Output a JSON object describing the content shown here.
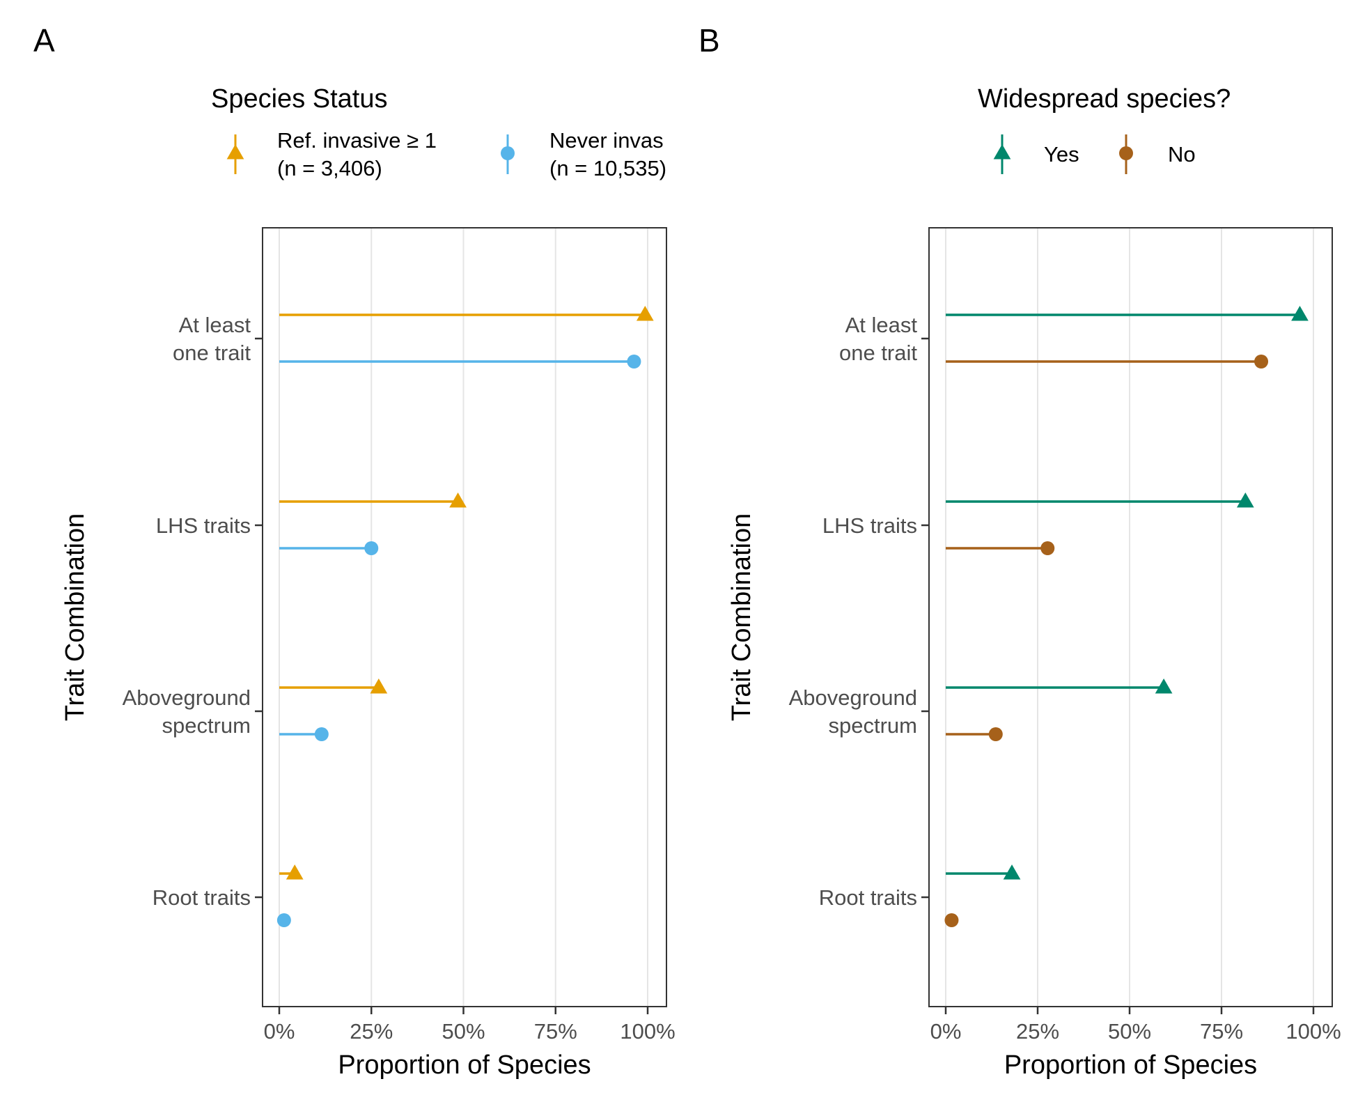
{
  "chart_data": [
    {
      "type": "lollipop",
      "panel_label": "A",
      "legend_title": "Species Status",
      "legend_placement": "top",
      "xlabel": "Proportion of Species",
      "ylabel": "Trait Combination",
      "xlim": [
        0,
        100
      ],
      "x_ticks": [
        "0%",
        "25%",
        "50%",
        "75%",
        "100%"
      ],
      "grid": true,
      "categories": [
        [
          "At least",
          "one trait"
        ],
        [
          "LHS traits"
        ],
        [
          "Aboveground",
          "spectrum"
        ],
        [
          "Root traits"
        ]
      ],
      "series": [
        {
          "name_lines": [
            "Ref. invasive ≥ 1",
            "(n =  3,406)"
          ],
          "shape": "triangle",
          "color": "#E69F00",
          "values": [
            99.3,
            48.5,
            27,
            4.2
          ]
        },
        {
          "name_lines": [
            "Never invas",
            "(n = 10,535)"
          ],
          "shape": "circle",
          "color": "#56B4E9",
          "values": [
            96.3,
            25,
            11.5,
            1.3
          ]
        }
      ]
    },
    {
      "type": "lollipop",
      "panel_label": "B",
      "legend_title": "Widespread species?",
      "legend_placement": "top",
      "xlabel": "Proportion of Species",
      "ylabel": "Trait Combination",
      "xlim": [
        0,
        100
      ],
      "x_ticks": [
        "0%",
        "25%",
        "50%",
        "75%",
        "100%"
      ],
      "grid": true,
      "categories": [
        [
          "At least",
          "one trait"
        ],
        [
          "LHS traits"
        ],
        [
          "Aboveground",
          "spectrum"
        ],
        [
          "Root traits"
        ]
      ],
      "series": [
        {
          "name_lines": [
            "Yes"
          ],
          "shape": "triangle",
          "color": "#00876C",
          "values": [
            96.3,
            81.5,
            59.3,
            18
          ]
        },
        {
          "name_lines": [
            "No"
          ],
          "shape": "circle",
          "color": "#A6611A",
          "values": [
            85.8,
            27.7,
            13.6,
            1.6
          ]
        }
      ]
    }
  ]
}
